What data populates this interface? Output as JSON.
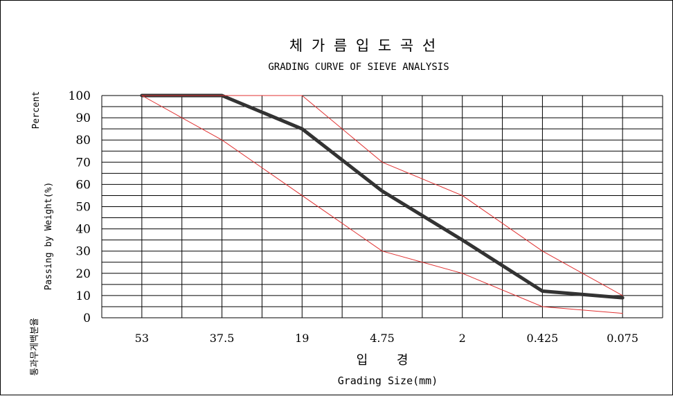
{
  "chart_data": {
    "type": "line",
    "title": "체 가 름 입 도 곡 선",
    "subtitle": "GRADING CURVE OF SIEVE ANALYSIS",
    "ylabel_top": "Percent",
    "ylabel": "Passing by Weight(%)",
    "ylabel_ko": "통과무게백분율",
    "xlabel_ko": "입  경",
    "xlabel": "Grading Size(mm)",
    "categories": [
      "53",
      "37.5",
      "19",
      "4.75",
      "2",
      "0.425",
      "0.075"
    ],
    "yticks": [
      "100",
      "90",
      "80",
      "70",
      "60",
      "50",
      "40",
      "30",
      "20",
      "10",
      "0"
    ],
    "ylim": [
      0,
      100
    ],
    "grid": true,
    "series": [
      {
        "values": [
          100,
          100,
          85,
          57,
          35,
          12,
          9
        ],
        "color": "#333333",
        "style": "thick"
      },
      {
        "values": [
          100,
          100,
          100,
          70,
          55,
          30,
          10
        ],
        "color": "#e03030",
        "style": "thin"
      },
      {
        "values": [
          100,
          80,
          55,
          30,
          20,
          5,
          2
        ],
        "color": "#e03030",
        "style": "thin"
      }
    ]
  }
}
